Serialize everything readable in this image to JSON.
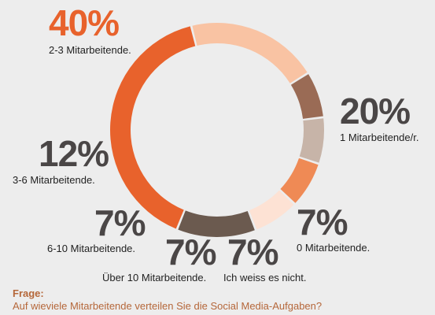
{
  "chart_data": {
    "type": "pie",
    "title": "",
    "slices": [
      {
        "label": "2-3 Mitarbeitende.",
        "value": 40,
        "display": "40%",
        "color": "#e8622c"
      },
      {
        "label": "1 Mitarbeitende/r.",
        "value": 20,
        "display": "20%",
        "color": "#f9c3a3"
      },
      {
        "label": "0 Mitarbeitende.",
        "value": 7,
        "display": "7%",
        "color": "#9a6b55"
      },
      {
        "label": "Ich weiss es nicht.",
        "value": 7,
        "display": "7%",
        "color": "#c7b4a8"
      },
      {
        "label": "Über 10 Mitarbeitende.",
        "value": 7,
        "display": "7%",
        "color": "#ef8a55"
      },
      {
        "label": "6-10 Mitarbeitende.",
        "value": 7,
        "display": "7%",
        "color": "#fde2d4"
      },
      {
        "label": "3-6 Mitarbeitende.",
        "value": 12,
        "display": "12%",
        "color": "#6b5a4f"
      }
    ]
  },
  "question": {
    "label": "Frage:",
    "text": "Auf wieviele Mitarbeitende verteilen Sie die Social Media-Aufgaben?"
  }
}
